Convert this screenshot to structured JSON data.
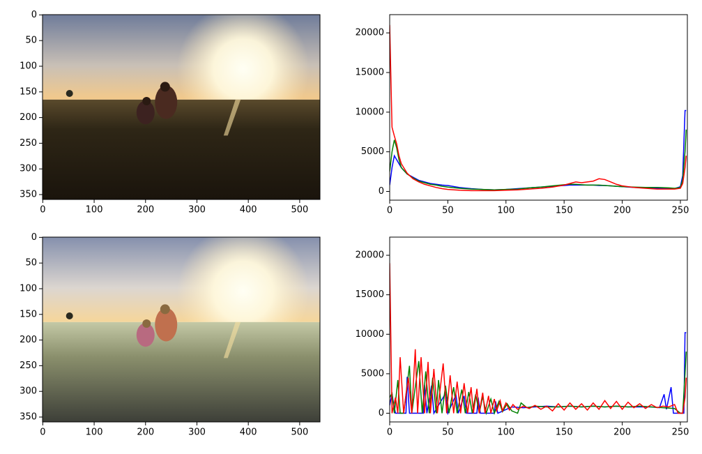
{
  "chart_data": [
    {
      "type": "image",
      "xlim": [
        -0.5,
        539.5
      ],
      "ylim": [
        359.5,
        -0.5
      ],
      "xticks": [
        0,
        100,
        200,
        300,
        400,
        500
      ],
      "yticks": [
        0,
        50,
        100,
        150,
        200,
        250,
        300,
        350
      ]
    },
    {
      "type": "line",
      "xlim": [
        0,
        256
      ],
      "ylim": [
        -1100,
        22300
      ],
      "xticks": [
        0,
        50,
        100,
        150,
        200,
        250
      ],
      "yticks": [
        0,
        5000,
        10000,
        15000,
        20000
      ],
      "x": [
        0,
        2,
        4,
        6,
        8,
        10,
        15,
        20,
        25,
        30,
        35,
        40,
        45,
        50,
        60,
        70,
        80,
        90,
        100,
        110,
        120,
        130,
        140,
        150,
        155,
        160,
        165,
        170,
        175,
        180,
        185,
        190,
        195,
        200,
        210,
        220,
        230,
        240,
        245,
        250,
        252,
        254,
        255
      ],
      "series": [
        {
          "color": "#0000ff",
          "values": [
            800,
            3000,
            4500,
            4000,
            3500,
            3000,
            2200,
            1800,
            1400,
            1200,
            1000,
            900,
            800,
            750,
            500,
            350,
            250,
            200,
            250,
            350,
            450,
            550,
            650,
            750,
            800,
            800,
            800,
            800,
            800,
            750,
            750,
            700,
            650,
            600,
            500,
            450,
            400,
            350,
            350,
            600,
            2000,
            10200,
            10200
          ]
        },
        {
          "color": "#008000",
          "values": [
            2500,
            5000,
            6500,
            5500,
            4000,
            3000,
            2200,
            1700,
            1300,
            1100,
            900,
            800,
            650,
            550,
            400,
            300,
            250,
            200,
            250,
            300,
            450,
            550,
            700,
            850,
            900,
            900,
            850,
            800,
            800,
            800,
            750,
            700,
            650,
            600,
            550,
            500,
            500,
            450,
            400,
            500,
            1500,
            5000,
            7800
          ]
        },
        {
          "color": "#ff0000",
          "values": [
            21000,
            8100,
            7000,
            6000,
            4500,
            3500,
            2300,
            1600,
            1200,
            900,
            700,
            500,
            350,
            250,
            150,
            100,
            100,
            100,
            150,
            200,
            300,
            400,
            550,
            800,
            1000,
            1200,
            1100,
            1200,
            1300,
            1600,
            1500,
            1200,
            900,
            700,
            500,
            400,
            300,
            300,
            300,
            400,
            1000,
            3000,
            4500
          ]
        }
      ]
    },
    {
      "type": "image",
      "xlim": [
        -0.5,
        539.5
      ],
      "ylim": [
        359.5,
        -0.5
      ],
      "xticks": [
        0,
        100,
        200,
        300,
        400,
        500
      ],
      "yticks": [
        0,
        50,
        100,
        150,
        200,
        250,
        300,
        350
      ]
    },
    {
      "type": "line",
      "xlim": [
        0,
        256
      ],
      "ylim": [
        -1100,
        22300
      ],
      "xticks": [
        0,
        50,
        100,
        150,
        200,
        250
      ],
      "yticks": [
        0,
        5000,
        10000,
        15000,
        20000
      ],
      "series": [
        {
          "color": "#0000ff",
          "x": [
            0,
            2,
            3,
            5,
            14,
            15,
            17,
            29,
            30,
            32,
            36,
            38,
            48,
            50,
            57,
            59,
            64,
            66,
            75,
            76,
            78,
            90,
            91,
            93,
            105,
            115,
            125,
            135,
            145,
            155,
            165,
            175,
            185,
            195,
            205,
            215,
            225,
            232,
            236,
            238,
            242,
            244,
            250,
            253,
            254,
            255
          ],
          "values": [
            1000,
            2500,
            1500,
            0,
            0,
            4600,
            0,
            0,
            3600,
            0,
            3500,
            0,
            2500,
            0,
            2300,
            0,
            2200,
            0,
            0,
            2000,
            0,
            0,
            1500,
            0,
            800,
            700,
            800,
            900,
            800,
            900,
            800,
            900,
            800,
            900,
            800,
            800,
            800,
            700,
            2400,
            500,
            3300,
            0,
            0,
            0,
            10200,
            10200
          ]
        },
        {
          "color": "#008000",
          "x": [
            0,
            2,
            4,
            7,
            9,
            12,
            17,
            19,
            25,
            28,
            31,
            34,
            37,
            40,
            42,
            45,
            48,
            51,
            55,
            58,
            62,
            65,
            68,
            71,
            74,
            77,
            80,
            83,
            87,
            90,
            94,
            97,
            101,
            105,
            110,
            113,
            118,
            125,
            135,
            145,
            155,
            165,
            175,
            185,
            195,
            205,
            215,
            225,
            235,
            245,
            250,
            252,
            254,
            255
          ],
          "values": [
            2000,
            2500,
            0,
            4200,
            0,
            0,
            6000,
            0,
            6600,
            0,
            5300,
            0,
            4500,
            0,
            4200,
            0,
            3500,
            0,
            3300,
            0,
            3000,
            0,
            2700,
            0,
            2400,
            0,
            2100,
            0,
            1800,
            0,
            1500,
            200,
            1200,
            300,
            0,
            1300,
            700,
            900,
            800,
            800,
            900,
            800,
            900,
            800,
            900,
            800,
            900,
            800,
            700,
            600,
            0,
            0,
            5000,
            7800
          ]
        },
        {
          "color": "#ff0000",
          "x": [
            0,
            2,
            5,
            7,
            9,
            12,
            16,
            19,
            22,
            24,
            27,
            30,
            33,
            35,
            38,
            41,
            46,
            49,
            52,
            55,
            58,
            61,
            64,
            67,
            70,
            72,
            75,
            77,
            80,
            82,
            85,
            87,
            90,
            92,
            95,
            97,
            100,
            103,
            106,
            110,
            115,
            120,
            125,
            130,
            135,
            140,
            145,
            150,
            155,
            160,
            165,
            170,
            175,
            180,
            185,
            190,
            195,
            200,
            205,
            210,
            215,
            220,
            225,
            230,
            235,
            240,
            245,
            248,
            252,
            254,
            255
          ],
          "values": [
            19000,
            0,
            2000,
            0,
            7100,
            0,
            4500,
            0,
            8100,
            0,
            7100,
            0,
            6500,
            0,
            5600,
            0,
            6300,
            0,
            4800,
            0,
            4000,
            0,
            3800,
            0,
            3300,
            0,
            3100,
            0,
            2600,
            0,
            2200,
            0,
            1800,
            300,
            1600,
            300,
            1300,
            400,
            1100,
            500,
            900,
            600,
            1000,
            500,
            900,
            300,
            1200,
            400,
            1300,
            500,
            1200,
            400,
            1300,
            500,
            1600,
            600,
            1500,
            500,
            1400,
            700,
            1200,
            600,
            1100,
            700,
            900,
            800,
            1100,
            0,
            0,
            2000,
            4500
          ]
        }
      ]
    }
  ]
}
